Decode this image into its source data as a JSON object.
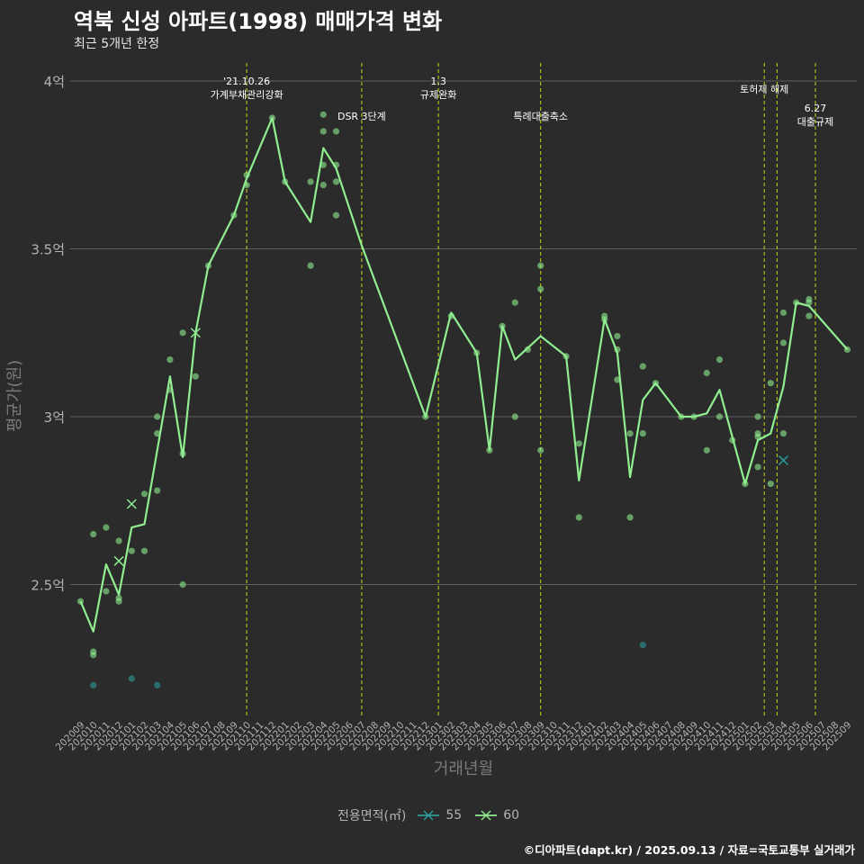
{
  "title": "역북 신성 아파트(1998) 매매가격 변화",
  "subtitle": "최근 5개년 한정",
  "caption": "©디아파트(dapt.kr) / 2025.09.13 / 자료=국토교통부 실거래가",
  "colors": {
    "background": "#2b2b2b",
    "grid": "#5e5e5e",
    "line": "#90ee90",
    "series_55": "#2a9d9a",
    "series_60": "#90ee90",
    "event_line": "#c9d614",
    "axis_text": "#b3b3b3"
  },
  "legend": {
    "title": "전용면적(㎡)",
    "items": [
      {
        "label": "55",
        "color": "#2a9d9a"
      },
      {
        "label": "60",
        "color": "#90ee90"
      }
    ]
  },
  "chart_data": {
    "type": "line",
    "xlabel": "거래년월",
    "ylabel": "평균가(원)",
    "ylim": [
      2.15,
      4.05
    ],
    "yticks": [
      {
        "value": 2.5,
        "label": "2.5억"
      },
      {
        "value": 3.0,
        "label": "3억"
      },
      {
        "value": 3.5,
        "label": "3.5억"
      },
      {
        "value": 4.0,
        "label": "4억"
      }
    ],
    "categories": [
      "202009",
      "202010",
      "202011",
      "202012",
      "202101",
      "202102",
      "202103",
      "202104",
      "202105",
      "202106",
      "202107",
      "202108",
      "202109",
      "202110",
      "202111",
      "202112",
      "202201",
      "202202",
      "202203",
      "202204",
      "202205",
      "202206",
      "202207",
      "202208",
      "202209",
      "202210",
      "202211",
      "202212",
      "202301",
      "202302",
      "202303",
      "202304",
      "202305",
      "202306",
      "202307",
      "202308",
      "202309",
      "202310",
      "202311",
      "202312",
      "202401",
      "202402",
      "202403",
      "202404",
      "202405",
      "202406",
      "202407",
      "202408",
      "202409",
      "202410",
      "202411",
      "202412",
      "202501",
      "202502",
      "202503",
      "202504",
      "202505",
      "202506",
      "202507",
      "202508",
      "202509"
    ],
    "average_line": {
      "name": "평균가",
      "points": [
        [
          0,
          2.45
        ],
        [
          1,
          2.36
        ],
        [
          2,
          2.56
        ],
        [
          3,
          2.47
        ],
        [
          4,
          2.67
        ],
        [
          5,
          2.68
        ],
        [
          6,
          2.9
        ],
        [
          7,
          3.12
        ],
        [
          8,
          2.88
        ],
        [
          9,
          3.25
        ],
        [
          10,
          3.45
        ],
        [
          12,
          3.6
        ],
        [
          13,
          3.71
        ],
        [
          15,
          3.89
        ],
        [
          16,
          3.7
        ],
        [
          18,
          3.58
        ],
        [
          19,
          3.8
        ],
        [
          20,
          3.74
        ],
        [
          22,
          3.51
        ],
        [
          27,
          3.0
        ],
        [
          29,
          3.31
        ],
        [
          31,
          3.19
        ],
        [
          32,
          2.9
        ],
        [
          33,
          3.27
        ],
        [
          34,
          3.17
        ],
        [
          36,
          3.24
        ],
        [
          38,
          3.18
        ],
        [
          39,
          2.81
        ],
        [
          41,
          3.29
        ],
        [
          42,
          3.19
        ],
        [
          43,
          2.82
        ],
        [
          44,
          3.05
        ],
        [
          45,
          3.1
        ],
        [
          47,
          3.0
        ],
        [
          48,
          3.0
        ],
        [
          49,
          3.01
        ],
        [
          50,
          3.08
        ],
        [
          52,
          2.8
        ],
        [
          53,
          2.93
        ],
        [
          54,
          2.95
        ],
        [
          55,
          3.09
        ],
        [
          56,
          3.34
        ],
        [
          57,
          3.33
        ],
        [
          60,
          3.2
        ]
      ]
    },
    "scatter": [
      {
        "name": "55",
        "points": [
          [
            1,
            2.2
          ],
          [
            4,
            2.22
          ],
          [
            6,
            2.2
          ],
          [
            44,
            2.32
          ]
        ]
      },
      {
        "name": "60",
        "points": [
          [
            0,
            2.45
          ],
          [
            1,
            2.65
          ],
          [
            1,
            2.3
          ],
          [
            1,
            2.29
          ],
          [
            2,
            2.67
          ],
          [
            2,
            2.48
          ],
          [
            3,
            2.63
          ],
          [
            3,
            2.45
          ],
          [
            3,
            2.46
          ],
          [
            4,
            2.6
          ],
          [
            5,
            2.6
          ],
          [
            5,
            2.77
          ],
          [
            6,
            2.78
          ],
          [
            6,
            2.95
          ],
          [
            6,
            3.0
          ],
          [
            7,
            3.17
          ],
          [
            7,
            3.08
          ],
          [
            8,
            3.25
          ],
          [
            8,
            2.5
          ],
          [
            8,
            2.89
          ],
          [
            9,
            3.12
          ],
          [
            10,
            3.45
          ],
          [
            12,
            3.6
          ],
          [
            13,
            3.72
          ],
          [
            13,
            3.69
          ],
          [
            15,
            3.89
          ],
          [
            16,
            3.7
          ],
          [
            18,
            3.7
          ],
          [
            18,
            3.45
          ],
          [
            19,
            3.9
          ],
          [
            19,
            3.85
          ],
          [
            19,
            3.75
          ],
          [
            19,
            3.69
          ],
          [
            20,
            3.85
          ],
          [
            20,
            3.75
          ],
          [
            20,
            3.7
          ],
          [
            20,
            3.6
          ],
          [
            27,
            3.0
          ],
          [
            29,
            3.3
          ],
          [
            31,
            3.19
          ],
          [
            32,
            2.9
          ],
          [
            33,
            3.27
          ],
          [
            34,
            3.34
          ],
          [
            34,
            3.0
          ],
          [
            35,
            3.2
          ],
          [
            36,
            3.45
          ],
          [
            36,
            3.38
          ],
          [
            36,
            2.9
          ],
          [
            38,
            3.18
          ],
          [
            39,
            2.92
          ],
          [
            39,
            2.7
          ],
          [
            41,
            3.3
          ],
          [
            41,
            3.29
          ],
          [
            42,
            3.24
          ],
          [
            42,
            3.2
          ],
          [
            42,
            3.11
          ],
          [
            43,
            2.95
          ],
          [
            43,
            2.7
          ],
          [
            44,
            3.15
          ],
          [
            44,
            2.95
          ],
          [
            45,
            3.1
          ],
          [
            47,
            3.0
          ],
          [
            48,
            3.0
          ],
          [
            49,
            3.13
          ],
          [
            49,
            2.9
          ],
          [
            50,
            3.17
          ],
          [
            50,
            3.0
          ],
          [
            51,
            2.93
          ],
          [
            52,
            2.8
          ],
          [
            53,
            3.0
          ],
          [
            53,
            2.95
          ],
          [
            53,
            2.94
          ],
          [
            53,
            2.85
          ],
          [
            54,
            3.1
          ],
          [
            54,
            2.8
          ],
          [
            55,
            3.31
          ],
          [
            55,
            3.22
          ],
          [
            55,
            2.95
          ],
          [
            56,
            3.34
          ],
          [
            57,
            3.35
          ],
          [
            57,
            3.34
          ],
          [
            57,
            3.3
          ],
          [
            60,
            3.2
          ]
        ]
      }
    ],
    "cross_markers": [
      {
        "series": "60",
        "x": 3,
        "y": 2.57
      },
      {
        "series": "60",
        "x": 4,
        "y": 2.74
      },
      {
        "series": "60",
        "x": 9,
        "y": 3.25
      },
      {
        "series": "55",
        "x": 55,
        "y": 2.87
      }
    ],
    "events": [
      {
        "x": 13,
        "lines": [
          "'21.10.26",
          "가계부채관리강화"
        ],
        "level": 1
      },
      {
        "x": 22,
        "lines": [
          "DSR 3단계"
        ],
        "level": 2
      },
      {
        "x": 28,
        "lines": [
          "1.3",
          "규제완화"
        ],
        "level": 1
      },
      {
        "x": 36,
        "lines": [
          "특례대출축소"
        ],
        "level": 2
      },
      {
        "x": 53.5,
        "lines": [
          "토허제 해제"
        ],
        "level": 3
      },
      {
        "x": 54.5,
        "lines": [],
        "level": 3
      },
      {
        "x": 57.5,
        "lines": [
          "6.27",
          "대출규제"
        ],
        "level": 4
      }
    ]
  }
}
